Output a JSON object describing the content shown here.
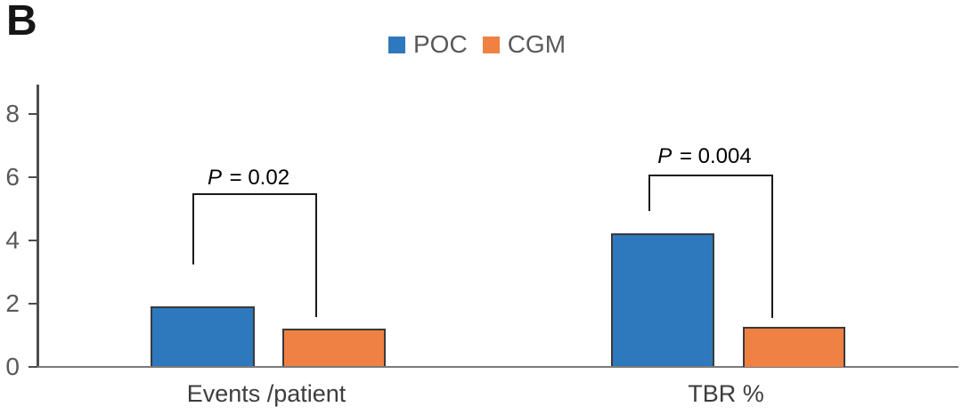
{
  "panel_label": "B",
  "legend": {
    "items": [
      {
        "label": "POC",
        "color": "#2E78BE"
      },
      {
        "label": "CGM",
        "color": "#EF8142"
      }
    ]
  },
  "chart_data": {
    "type": "bar",
    "title": "",
    "xlabel": "",
    "ylabel": "",
    "categories": [
      "Events /patient",
      "TBR %"
    ],
    "series": [
      {
        "name": "POC",
        "color": "#2E78BE",
        "values": [
          1.9,
          4.2
        ]
      },
      {
        "name": "CGM",
        "color": "#EF8142",
        "values": [
          1.2,
          1.25
        ]
      }
    ],
    "ylim": [
      0,
      9
    ],
    "yticks": [
      0,
      2,
      4,
      6,
      8
    ],
    "grid": false,
    "legend_position": "top-center",
    "annotations": [
      {
        "text": "P = 0.02",
        "group": "Events /patient",
        "compares": [
          "POC",
          "CGM"
        ]
      },
      {
        "text": "P = 0.004",
        "group": "TBR %",
        "compares": [
          "POC",
          "CGM"
        ]
      }
    ]
  }
}
